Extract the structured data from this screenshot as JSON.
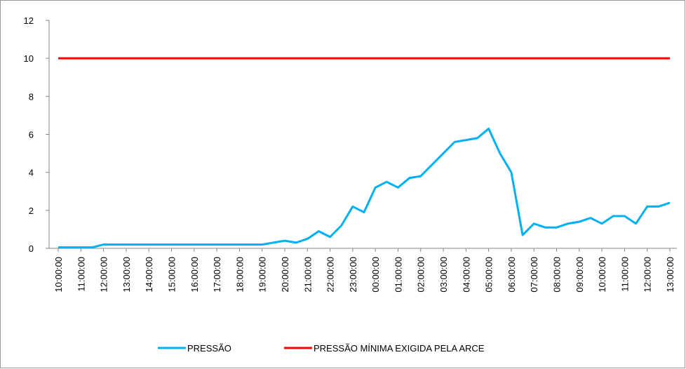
{
  "chart_data": {
    "type": "line",
    "categories": [
      "10:00:00",
      null,
      "11:00:00",
      null,
      "12:00:00",
      null,
      "13:00:00",
      null,
      "14:00:00",
      null,
      "15:00:00",
      null,
      "16:00:00",
      null,
      "17:00:00",
      null,
      "18:00:00",
      null,
      "19:00:00",
      null,
      "20:00:00",
      null,
      "21:00:00",
      null,
      "22:00:00",
      null,
      "23:00:00",
      null,
      "00:00:00",
      null,
      "01:00:00",
      null,
      "02:00:00",
      null,
      "03:00:00",
      null,
      "04:00:00",
      null,
      "05:00:00",
      null,
      "06:00:00",
      null,
      "07:00:00",
      null,
      "08:00:00",
      null,
      "09:00:00",
      null,
      "10:00:00",
      null,
      "11:00:00",
      null,
      "12:00:00",
      null,
      "13:00:00"
    ],
    "series": [
      {
        "name": "PRESSÃO",
        "color": "#00b0f0",
        "values": [
          0.05,
          0.05,
          0.05,
          0.05,
          0.2,
          0.2,
          0.2,
          0.2,
          0.2,
          0.2,
          0.2,
          0.2,
          0.2,
          0.2,
          0.2,
          0.2,
          0.2,
          0.2,
          0.2,
          0.3,
          0.4,
          0.3,
          0.5,
          0.9,
          0.6,
          1.2,
          2.2,
          1.9,
          3.2,
          3.5,
          3.2,
          3.7,
          3.8,
          4.4,
          5.0,
          5.6,
          5.7,
          5.8,
          6.3,
          5.0,
          4.0,
          0.7,
          1.3,
          1.1,
          1.1,
          1.3,
          1.4,
          1.6,
          1.3,
          1.7,
          1.7,
          1.3,
          2.2,
          2.2,
          2.4
        ]
      },
      {
        "name": "PRESSÃO MÍNIMA EXIGIDA PELA ARCE",
        "color": "#ff0000",
        "values": [
          10,
          10,
          10,
          10,
          10,
          10,
          10,
          10,
          10,
          10,
          10,
          10,
          10,
          10,
          10,
          10,
          10,
          10,
          10,
          10,
          10,
          10,
          10,
          10,
          10,
          10,
          10,
          10,
          10,
          10,
          10,
          10,
          10,
          10,
          10,
          10,
          10,
          10,
          10,
          10,
          10,
          10,
          10,
          10,
          10,
          10,
          10,
          10,
          10,
          10,
          10,
          10,
          10,
          10,
          10
        ]
      }
    ],
    "ylim": [
      0,
      12
    ],
    "yticks": [
      0,
      2,
      4,
      6,
      8,
      10,
      12
    ],
    "legend": "bottom"
  }
}
